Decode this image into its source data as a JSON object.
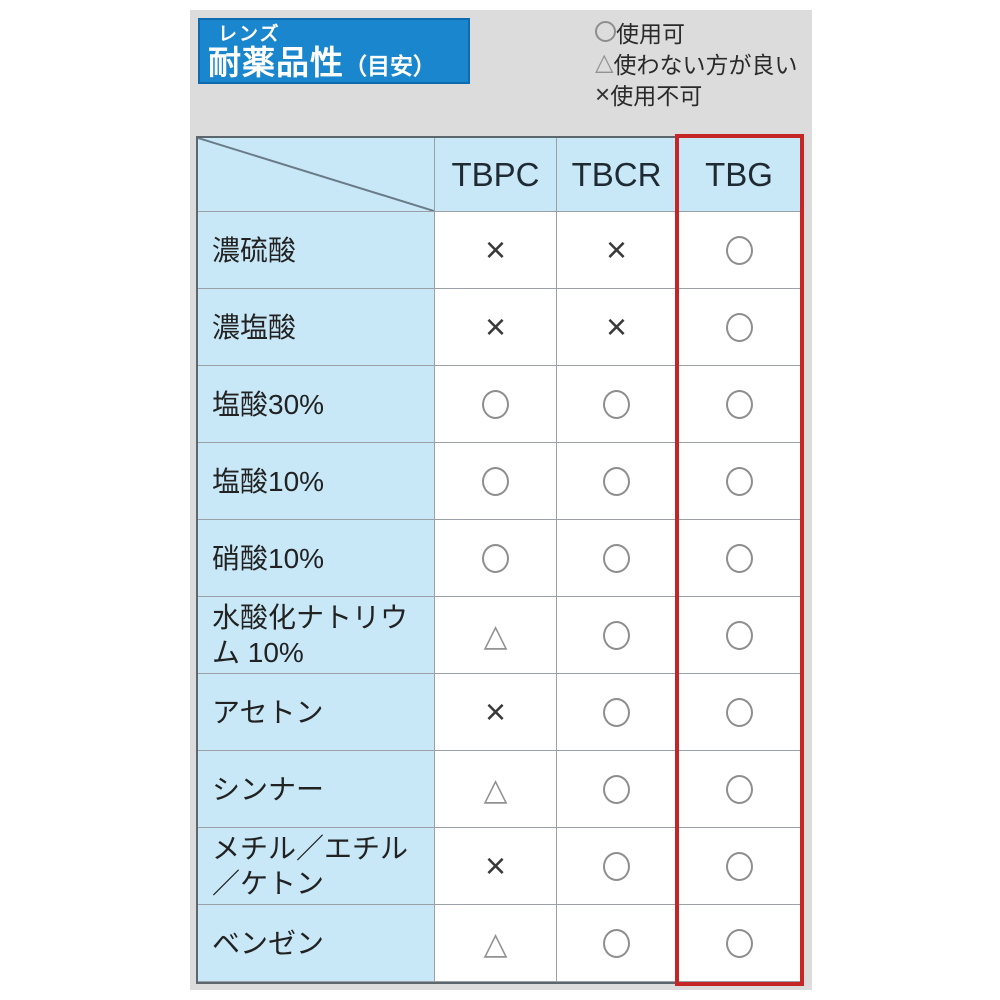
{
  "title": {
    "small": "レンズ",
    "main": "耐薬品性",
    "suffix": "（目安）"
  },
  "legend": [
    {
      "symbol": "○",
      "label": "使用可"
    },
    {
      "symbol": "△",
      "label": "使わない方が良い"
    },
    {
      "symbol": "×",
      "label": "使用不可"
    }
  ],
  "table": {
    "columns": [
      "TBPC",
      "TBCR",
      "TBG"
    ],
    "highlighted_column": "TBG",
    "rows": [
      {
        "label": "濃硫酸",
        "values": [
          "×",
          "×",
          "○"
        ]
      },
      {
        "label": "濃塩酸",
        "values": [
          "×",
          "×",
          "○"
        ]
      },
      {
        "label": "塩酸30%",
        "values": [
          "○",
          "○",
          "○"
        ]
      },
      {
        "label": "塩酸10%",
        "values": [
          "○",
          "○",
          "○"
        ]
      },
      {
        "label": "硝酸10%",
        "values": [
          "○",
          "○",
          "○"
        ]
      },
      {
        "label": "水酸化ナトリウム 10%",
        "values": [
          "△",
          "○",
          "○"
        ]
      },
      {
        "label": "アセトン",
        "values": [
          "×",
          "○",
          "○"
        ]
      },
      {
        "label": "シンナー",
        "values": [
          "△",
          "○",
          "○"
        ]
      },
      {
        "label": "メチル／エチル／ケトン",
        "values": [
          "×",
          "○",
          "○"
        ]
      },
      {
        "label": "ベンゼン",
        "values": [
          "△",
          "○",
          "○"
        ]
      }
    ]
  },
  "colors": {
    "accent_blue": "#1a86cd",
    "cell_blue": "#c8e8f8",
    "highlight_red": "#c62525",
    "background_gray": "#dcdcdc"
  }
}
